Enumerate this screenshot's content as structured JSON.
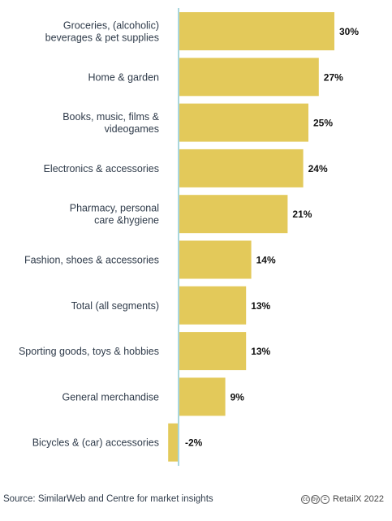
{
  "colors": {
    "bar": "#e3c95a",
    "axis": "#a9d6dd",
    "label": "#2f3b4a",
    "value": "#111111"
  },
  "chart_data": {
    "type": "bar",
    "orientation": "horizontal",
    "categories": [
      [
        "Groceries, (alcoholic)",
        "beverages & pet supplies"
      ],
      [
        "Home & garden"
      ],
      [
        "Books, music, films &",
        "videogames"
      ],
      [
        "Electronics & accessories"
      ],
      [
        "Pharmacy, personal",
        "care &hygiene"
      ],
      [
        "Fashion, shoes & accessories"
      ],
      [
        "Total (all segments)"
      ],
      [
        "Sporting goods, toys & hobbies"
      ],
      [
        "General merchandise"
      ],
      [
        "Bicycles & (car) accessories"
      ]
    ],
    "values": [
      30,
      27,
      25,
      24,
      21,
      14,
      13,
      13,
      9,
      -2
    ],
    "value_labels": [
      "30%",
      "27%",
      "25%",
      "24%",
      "21%",
      "14%",
      "13%",
      "13%",
      "9%",
      "-2%"
    ],
    "xlim": [
      -2.5,
      32
    ],
    "grid": false,
    "legend": "none"
  },
  "footer": {
    "source": "Source: SimilarWeb and Centre for market insights",
    "license_icons": [
      "cc",
      "by",
      "="
    ],
    "brand": "RetailX 2022"
  }
}
